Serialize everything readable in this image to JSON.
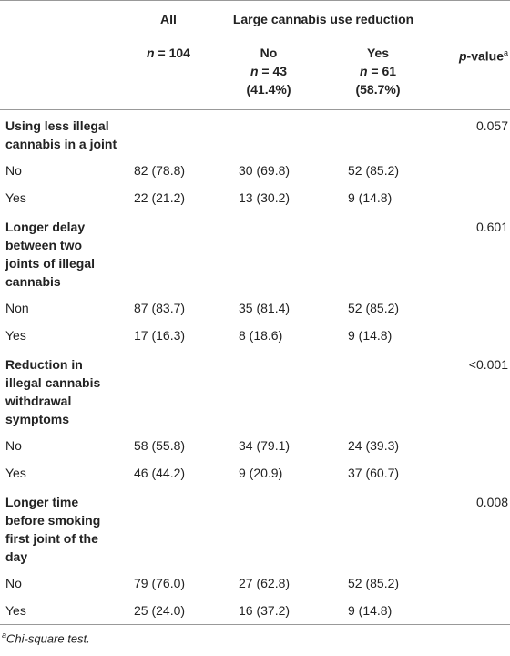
{
  "header": {
    "all": {
      "title": "All",
      "n_symbol": "n",
      "n_text": "= 104"
    },
    "group_title": "Large cannabis use reduction",
    "no": {
      "title": "No",
      "n_symbol": "n",
      "n_text": "= 43",
      "percent": "(41.4%)"
    },
    "yes": {
      "title": "Yes",
      "n_symbol": "n",
      "n_text": "= 61 (58.7%)"
    },
    "p_value": {
      "symbol": "p",
      "text": "-value",
      "footnote_mark": "a"
    }
  },
  "sections": [
    {
      "label": "Using less illegal cannabis in a joint",
      "p_value": "0.057",
      "rows": [
        {
          "label": "No",
          "all": "82 (78.8)",
          "no": "30 (69.8)",
          "yes": "52 (85.2)"
        },
        {
          "label": "Yes",
          "all": "22 (21.2)",
          "no": "13 (30.2)",
          "yes": "9 (14.8)"
        }
      ]
    },
    {
      "label": "Longer delay between two joints of illegal cannabis",
      "p_value": "0.601",
      "rows": [
        {
          "label": "Non",
          "all": "87 (83.7)",
          "no": "35 (81.4)",
          "yes": "52 (85.2)"
        },
        {
          "label": "Yes",
          "all": "17 (16.3)",
          "no": "8 (18.6)",
          "yes": "9 (14.8)"
        }
      ]
    },
    {
      "label": "Reduction in illegal cannabis withdrawal symptoms",
      "p_value": "<0.001",
      "rows": [
        {
          "label": "No",
          "all": "58 (55.8)",
          "no": "34 (79.1)",
          "yes": "24 (39.3)"
        },
        {
          "label": "Yes",
          "all": "46 (44.2)",
          "no": "9 (20.9)",
          "yes": "37 (60.7)"
        }
      ]
    },
    {
      "label": "Longer time before smoking first joint of the day",
      "p_value": "0.008",
      "rows": [
        {
          "label": "No",
          "all": "79 (76.0)",
          "no": "27 (62.8)",
          "yes": "52 (85.2)"
        },
        {
          "label": "Yes",
          "all": "25 (24.0)",
          "no": "16 (37.2)",
          "yes": "9 (14.8)"
        }
      ]
    }
  ],
  "footnote": {
    "mark": "a",
    "text": "Chi-square test."
  }
}
